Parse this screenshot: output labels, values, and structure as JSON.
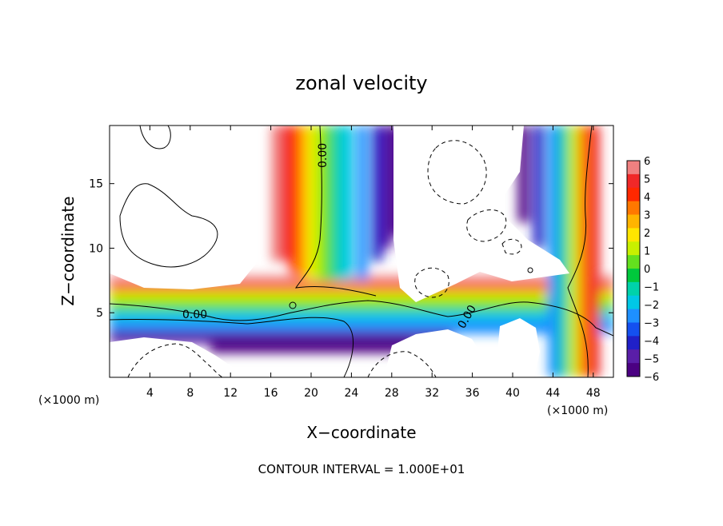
{
  "chart_data": {
    "type": "heatmap",
    "title": "zonal velocity",
    "xlabel": "X−coordinate",
    "ylabel": "Z−coordinate",
    "x_unit_left": "(×1000 m)",
    "x_unit_right": "(×1000 m)",
    "xlim": [
      0,
      50
    ],
    "ylim": [
      0,
      19.5
    ],
    "x_ticks": [
      4,
      8,
      12,
      16,
      20,
      24,
      28,
      32,
      36,
      40,
      44,
      48
    ],
    "y_ticks": [
      5,
      10,
      15
    ],
    "colorbar": {
      "min": -6,
      "max": 6,
      "ticks": [
        "6",
        "5",
        "4",
        "3",
        "2",
        "1",
        "0",
        "−1",
        "−2",
        "−3",
        "−4",
        "−5",
        "−6"
      ],
      "colors": [
        "#4b0082",
        "#5a1ea8",
        "#2020c8",
        "#1450f0",
        "#1e90ff",
        "#00c8e6",
        "#00d2aa",
        "#00c83c",
        "#64e01e",
        "#c8f000",
        "#ffe600",
        "#ffb400",
        "#ff7800",
        "#ff2800",
        "#f02828",
        "#f08080"
      ]
    },
    "contour_label": "0.00",
    "contour_note": "CONTOUR INTERVAL = 1.000E+01",
    "bands": [
      {
        "x": 16.5,
        "z_from": 9,
        "z_to": 19.5,
        "value": 6
      },
      {
        "x": 17.5,
        "z_from": 9,
        "z_to": 19.5,
        "value": 5
      },
      {
        "x": 18.3,
        "z_from": 8,
        "z_to": 19.5,
        "value": 4
      },
      {
        "x": 19.0,
        "z_from": 7.5,
        "z_to": 19.5,
        "value": 3
      },
      {
        "x": 19.8,
        "z_from": 7.5,
        "z_to": 19.5,
        "value": 2
      },
      {
        "x": 20.5,
        "z_from": 7.5,
        "z_to": 19.5,
        "value": 1
      },
      {
        "x": 21.5,
        "z_from": 7.5,
        "z_to": 19.5,
        "value": 0
      },
      {
        "x": 22.5,
        "z_from": 7.5,
        "z_to": 19.5,
        "value": -1
      },
      {
        "x": 23.5,
        "z_from": 7.5,
        "z_to": 19.5,
        "value": -2
      },
      {
        "x": 25.0,
        "z_from": 7.5,
        "z_to": 19.5,
        "value": -3
      },
      {
        "x": 26.5,
        "z_from": 9,
        "z_to": 19.5,
        "value": -4
      },
      {
        "x": 27.5,
        "z_from": 10,
        "z_to": 19.5,
        "value": -5
      },
      {
        "x": 28.5,
        "z_from": 11,
        "z_to": 19.5,
        "value": -6
      },
      {
        "x": 41.0,
        "z_from": 12,
        "z_to": 19.5,
        "value": -6
      },
      {
        "x": 42.5,
        "z_from": 10,
        "z_to": 19.5,
        "value": -4
      },
      {
        "x": 44.0,
        "z_from": 0,
        "z_to": 19.5,
        "value": -3
      },
      {
        "x": 45.0,
        "z_from": 0,
        "z_to": 19.5,
        "value": -1
      },
      {
        "x": 46.0,
        "z_from": 0,
        "z_to": 19.5,
        "value": 1
      },
      {
        "x": 47.0,
        "z_from": 0,
        "z_to": 19.5,
        "value": 3
      },
      {
        "x": 48.0,
        "z_from": 0,
        "z_to": 19.5,
        "value": 5
      }
    ],
    "layers": [
      {
        "z": 7.5,
        "x_from": 0,
        "x_to": 50,
        "value": 6
      },
      {
        "z": 6.8,
        "x_from": 0,
        "x_to": 50,
        "value": 3
      },
      {
        "z": 6.2,
        "x_from": 0,
        "x_to": 50,
        "value": 1
      },
      {
        "z": 5.5,
        "x_from": 0,
        "x_to": 50,
        "value": 0
      },
      {
        "z": 4.8,
        "x_from": 0,
        "x_to": 50,
        "value": -2
      },
      {
        "z": 4.0,
        "x_from": 0,
        "x_to": 50,
        "value": -3
      },
      {
        "z": 3.2,
        "x_from": 0,
        "x_to": 34,
        "value": -5
      },
      {
        "z": 2.5,
        "x_from": 10,
        "x_to": 30,
        "value": -6
      }
    ]
  }
}
